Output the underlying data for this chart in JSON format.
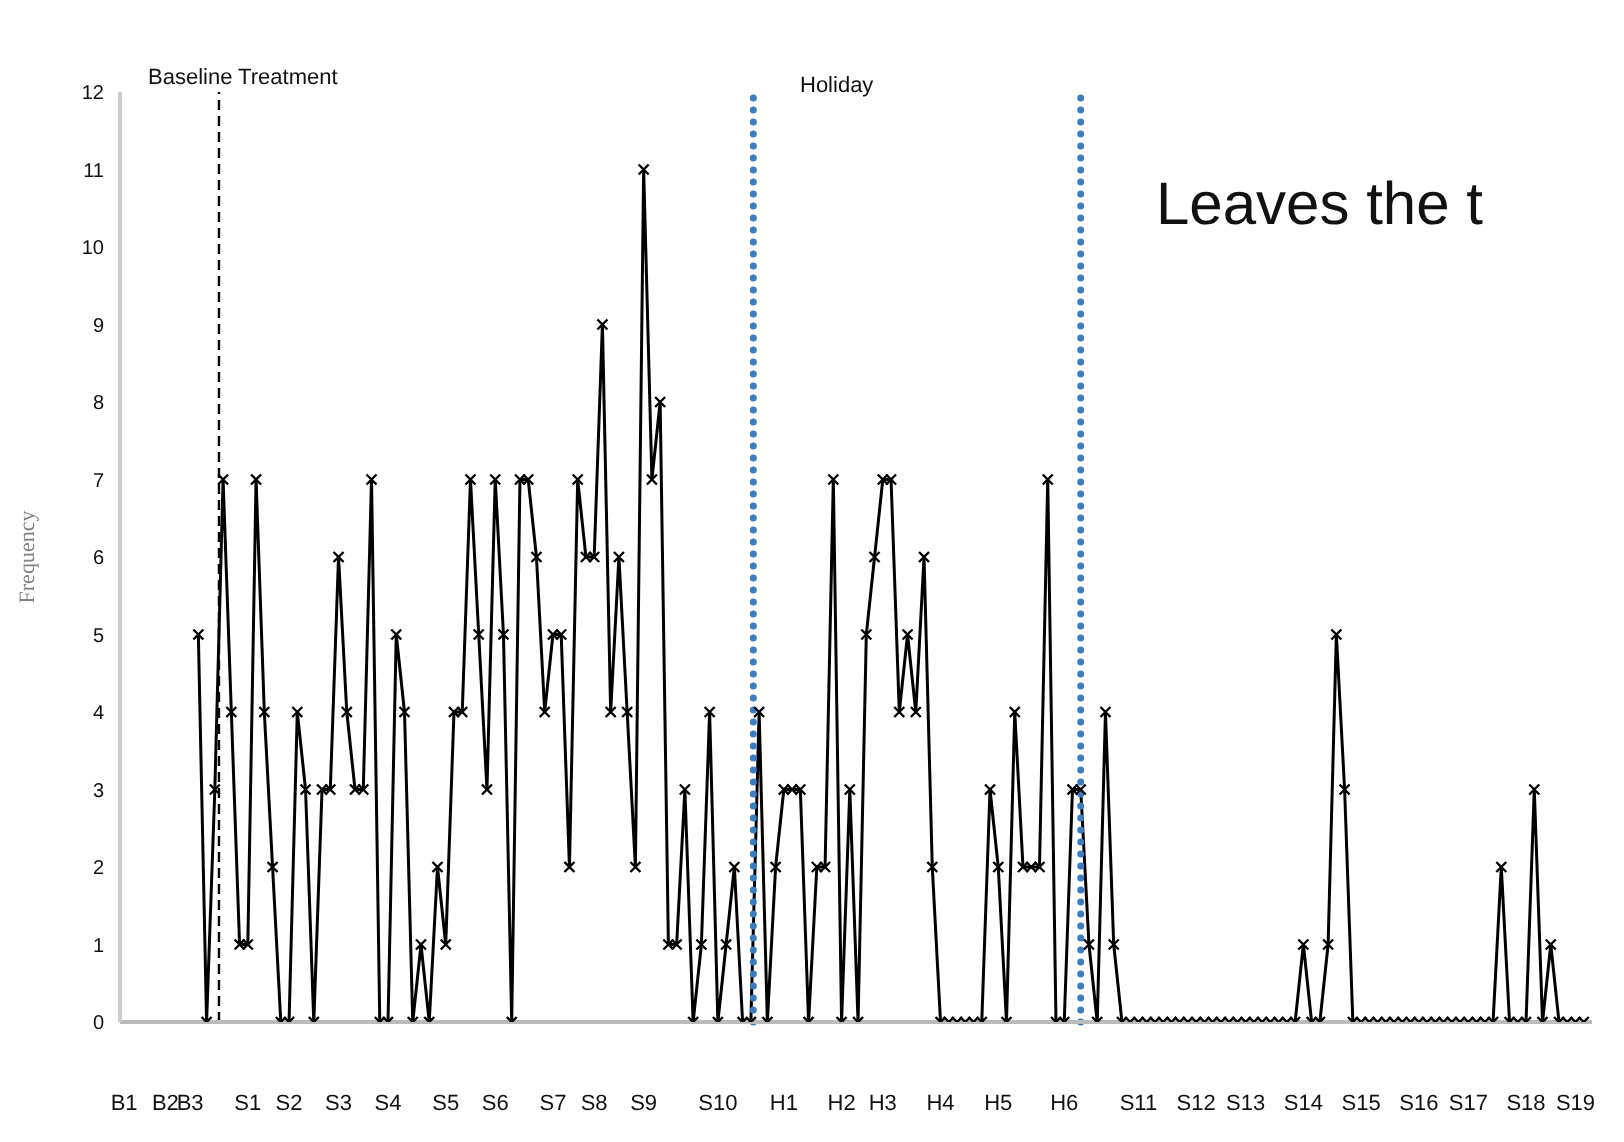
{
  "chart_data": {
    "type": "line",
    "ylabel": "Frequency",
    "annotations": [
      "Baseline Treatment",
      "Holiday",
      "Leaves the t"
    ],
    "categories": [
      "B1",
      null,
      null,
      null,
      null,
      "B2",
      null,
      null,
      "B3",
      null,
      null,
      null,
      null,
      null,
      null,
      "S1",
      null,
      null,
      null,
      null,
      "S2",
      null,
      null,
      null,
      null,
      null,
      "S3",
      null,
      null,
      null,
      null,
      null,
      "S4",
      null,
      null,
      null,
      null,
      null,
      null,
      "S5",
      null,
      null,
      null,
      null,
      null,
      "S6",
      null,
      null,
      null,
      null,
      null,
      null,
      "S7",
      null,
      null,
      null,
      null,
      "S8",
      null,
      null,
      null,
      null,
      null,
      "S9",
      null,
      null,
      null,
      null,
      null,
      null,
      null,
      null,
      "S10",
      null,
      null,
      null,
      null,
      null,
      null,
      null,
      "H1",
      null,
      null,
      null,
      null,
      null,
      null,
      "H2",
      null,
      null,
      null,
      null,
      "H3",
      null,
      null,
      null,
      null,
      null,
      null,
      "H4",
      null,
      null,
      null,
      null,
      null,
      null,
      "H5",
      null,
      null,
      null,
      null,
      null,
      null,
      null,
      "H6",
      null,
      null,
      null,
      null,
      null,
      null,
      null,
      null,
      "S11",
      null,
      null,
      null,
      null,
      null,
      null,
      "S12",
      null,
      null,
      null,
      null,
      null,
      "S13",
      null,
      null,
      null,
      null,
      null,
      null,
      "S14",
      null,
      null,
      null,
      null,
      null,
      null,
      "S15",
      null,
      null,
      null,
      null,
      null,
      null,
      "S16",
      null,
      null,
      null,
      null,
      null,
      "S17",
      null,
      null,
      null,
      null,
      null,
      null,
      "S18",
      null,
      null,
      null,
      null,
      null,
      "S19",
      null
    ],
    "series": [
      {
        "color": "#000000",
        "values": [
          null,
          null,
          null,
          null,
          null,
          null,
          null,
          null,
          null,
          5,
          0,
          3,
          7,
          4,
          1,
          1,
          7,
          4,
          2,
          0,
          0,
          4,
          3,
          0,
          3,
          3,
          6,
          4,
          3,
          3,
          7,
          0,
          0,
          5,
          4,
          0,
          1,
          0,
          2,
          1,
          4,
          4,
          7,
          5,
          3,
          7,
          5,
          0,
          7,
          7,
          6,
          4,
          5,
          5,
          2,
          7,
          6,
          6,
          9,
          4,
          6,
          4,
          2,
          11,
          7,
          8,
          1,
          1,
          3,
          0,
          1,
          4,
          0,
          1,
          2,
          0,
          0,
          4,
          0,
          2,
          3,
          3,
          3,
          0,
          2,
          2,
          7,
          0,
          3,
          0,
          5,
          6,
          7,
          7,
          4,
          5,
          4,
          6,
          2,
          0,
          0,
          0,
          0,
          0,
          0,
          3,
          2,
          0,
          4,
          2,
          2,
          2,
          7,
          0,
          0,
          3,
          3,
          1,
          0,
          4,
          1,
          0,
          0,
          0,
          0,
          0,
          0,
          0,
          0,
          0,
          0,
          0,
          0,
          0,
          0,
          0,
          0,
          0,
          0,
          0,
          0,
          0,
          0,
          1,
          0,
          0,
          1,
          5,
          3,
          0,
          0,
          0,
          0,
          0,
          0,
          0,
          0,
          0,
          0,
          0,
          0,
          0,
          0,
          0,
          0,
          0,
          0,
          2,
          0,
          0,
          0,
          3,
          0,
          1,
          0,
          0,
          0,
          0
        ]
      }
    ],
    "ylim": [
      0,
      12
    ],
    "yticks": [
      0,
      1,
      2,
      3,
      4,
      5,
      6,
      7,
      8,
      9,
      10,
      11,
      12
    ],
    "grid": false,
    "marker": "cross",
    "line_style": "solid"
  }
}
